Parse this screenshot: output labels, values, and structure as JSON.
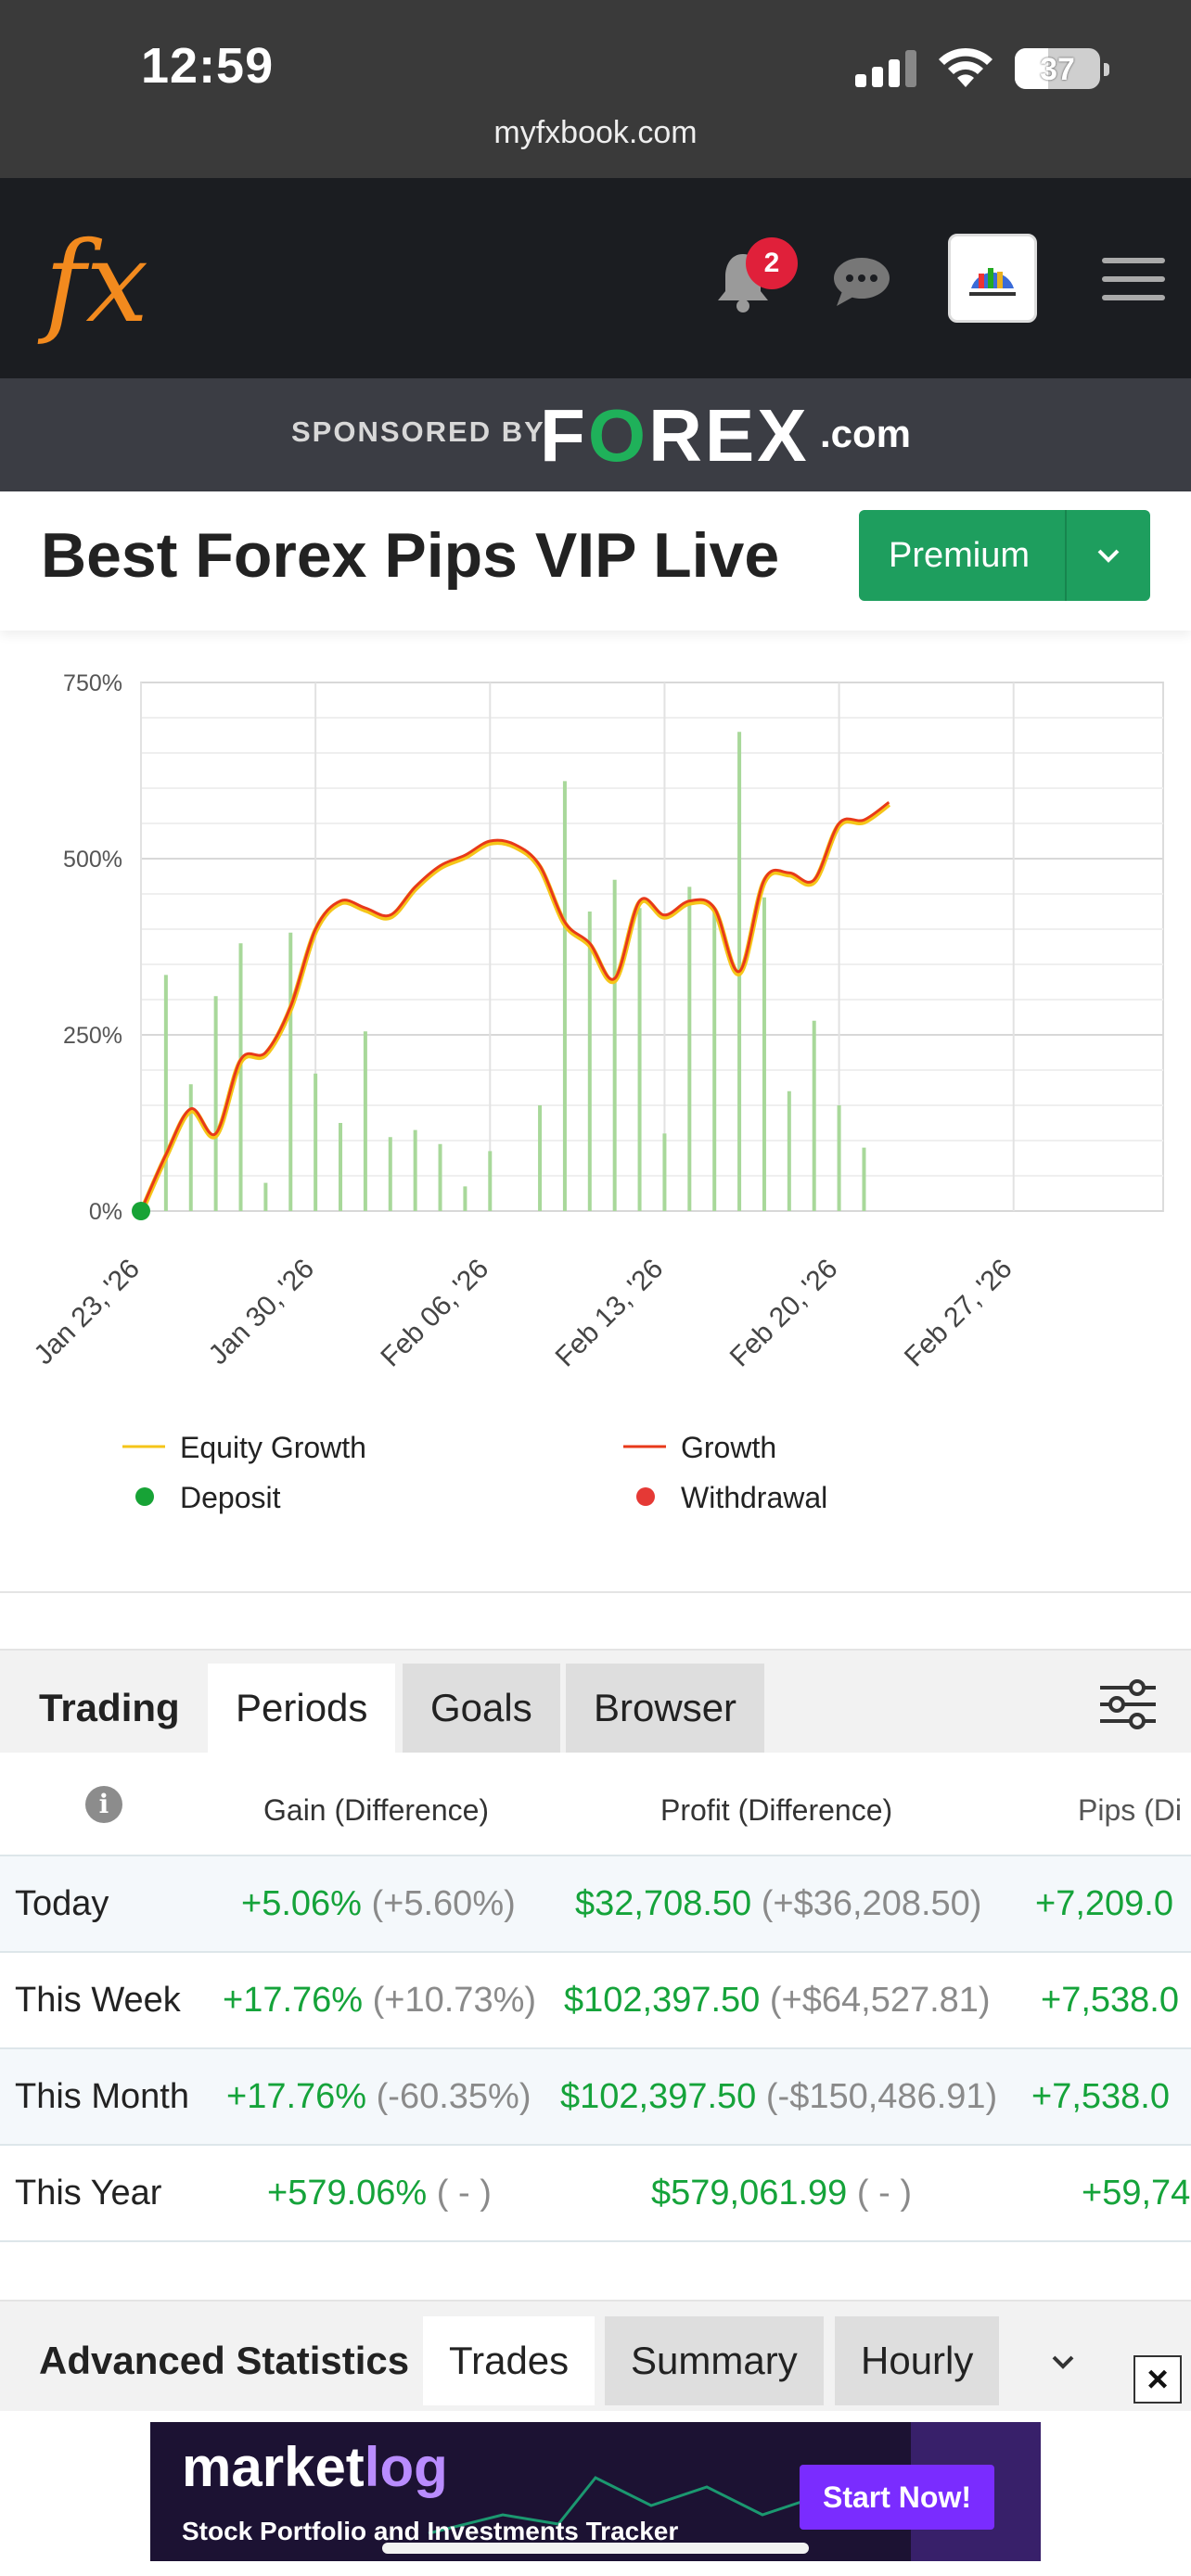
{
  "status_bar": {
    "time": "12:59",
    "url": "myfxbook.com",
    "battery": "37"
  },
  "header": {
    "logo_text": "fx",
    "notification_count": "2",
    "icons": [
      "bell-icon",
      "chat-icon",
      "avatar",
      "hamburger-menu-icon"
    ]
  },
  "sponsor": {
    "label": "SPONSORED BY",
    "brand_pre": "F",
    "brand_o": "O",
    "brand_post": "REX",
    "brand_suffix": ".com"
  },
  "title": {
    "text": "Best Forex Pips VIP Live",
    "premium_label": "Premium"
  },
  "chart_data": {
    "type": "line",
    "ylim": [
      0,
      750
    ],
    "y_ticks": [
      "0%",
      "250%",
      "500%",
      "750%"
    ],
    "x_ticks": [
      "Jan 23, '26",
      "Jan 30, '26",
      "Feb 06, '26",
      "Feb 13, '26",
      "Feb 20, '26",
      "Feb 27, '26"
    ],
    "x_days": [
      0,
      7,
      14,
      21,
      28,
      35
    ],
    "x_range": [
      0,
      41
    ],
    "growth": [
      [
        0,
        0
      ],
      [
        1,
        80
      ],
      [
        2,
        145
      ],
      [
        3,
        110
      ],
      [
        4,
        215
      ],
      [
        5,
        225
      ],
      [
        6,
        290
      ],
      [
        7,
        400
      ],
      [
        8,
        440
      ],
      [
        9,
        430
      ],
      [
        10,
        420
      ],
      [
        11,
        460
      ],
      [
        12,
        490
      ],
      [
        13,
        505
      ],
      [
        14,
        525
      ],
      [
        15,
        520
      ],
      [
        16,
        490
      ],
      [
        17,
        410
      ],
      [
        18,
        380
      ],
      [
        19,
        330
      ],
      [
        20,
        440
      ],
      [
        21,
        420
      ],
      [
        22,
        440
      ],
      [
        23,
        430
      ],
      [
        24,
        340
      ],
      [
        25,
        470
      ],
      [
        26,
        480
      ],
      [
        27,
        470
      ],
      [
        28,
        550
      ],
      [
        29,
        555
      ],
      [
        30,
        580
      ]
    ],
    "bars": [
      [
        1,
        335
      ],
      [
        2,
        180
      ],
      [
        3,
        305
      ],
      [
        4,
        380
      ],
      [
        5,
        40
      ],
      [
        6,
        395
      ],
      [
        7,
        195
      ],
      [
        8,
        125
      ],
      [
        9,
        255
      ],
      [
        10,
        105
      ],
      [
        11,
        115
      ],
      [
        12,
        95
      ],
      [
        13,
        35
      ],
      [
        14,
        85
      ],
      [
        15,
        0
      ],
      [
        16,
        150
      ],
      [
        17,
        610
      ],
      [
        18,
        425
      ],
      [
        19,
        470
      ],
      [
        20,
        430
      ],
      [
        21,
        110
      ],
      [
        22,
        460
      ],
      [
        23,
        425
      ],
      [
        24,
        680
      ],
      [
        25,
        445
      ],
      [
        26,
        170
      ],
      [
        27,
        270
      ],
      [
        28,
        150
      ],
      [
        29,
        90
      ]
    ],
    "legend": [
      {
        "label": "Equity Growth",
        "color": "#f5c518",
        "shape": "line"
      },
      {
        "label": "Growth",
        "color": "#e8391a",
        "shape": "line"
      },
      {
        "label": "Deposit",
        "color": "#17a336",
        "shape": "dot"
      },
      {
        "label": "Withdrawal",
        "color": "#e53935",
        "shape": "dot"
      }
    ]
  },
  "tabs": {
    "items": [
      "Trading",
      "Periods",
      "Goals",
      "Browser"
    ],
    "active": "Periods"
  },
  "table": {
    "headers": [
      "Gain (Difference)",
      "Profit (Difference)",
      "Pips (Di"
    ],
    "rows": [
      {
        "label": "Today",
        "gain": "+5.06%",
        "gain_diff": "(+5.60%)",
        "profit": "$32,708.50",
        "profit_diff": "(+$36,208.50)",
        "pips": "+7,209.0"
      },
      {
        "label": "This Week",
        "gain": "+17.76%",
        "gain_diff": "(+10.73%)",
        "profit": "$102,397.50",
        "profit_diff": "(+$64,527.81)",
        "pips": "+7,538.0"
      },
      {
        "label": "This Month",
        "gain": "+17.76%",
        "gain_diff": "(-60.35%)",
        "profit": "$102,397.50",
        "profit_diff": "(-$150,486.91)",
        "pips": "+7,538.0"
      },
      {
        "label": "This Year",
        "gain": "+579.06%",
        "gain_diff": "( - )",
        "profit": "$579,061.99",
        "profit_diff": "( - )",
        "pips": "+59,74"
      }
    ]
  },
  "advanced": {
    "title": "Advanced Statistics",
    "tabs": [
      "Trades",
      "Summary",
      "Hourly"
    ]
  },
  "ad": {
    "brand_a": "market",
    "brand_b": "log",
    "tagline": "Stock Portfolio and Investments Tracker",
    "cta": "Start Now!"
  },
  "colors": {
    "accent_green": "#1e9e5e",
    "gain_green": "#15a33a",
    "header_bg": "#1b1d21",
    "badge_red": "#e0203a"
  }
}
